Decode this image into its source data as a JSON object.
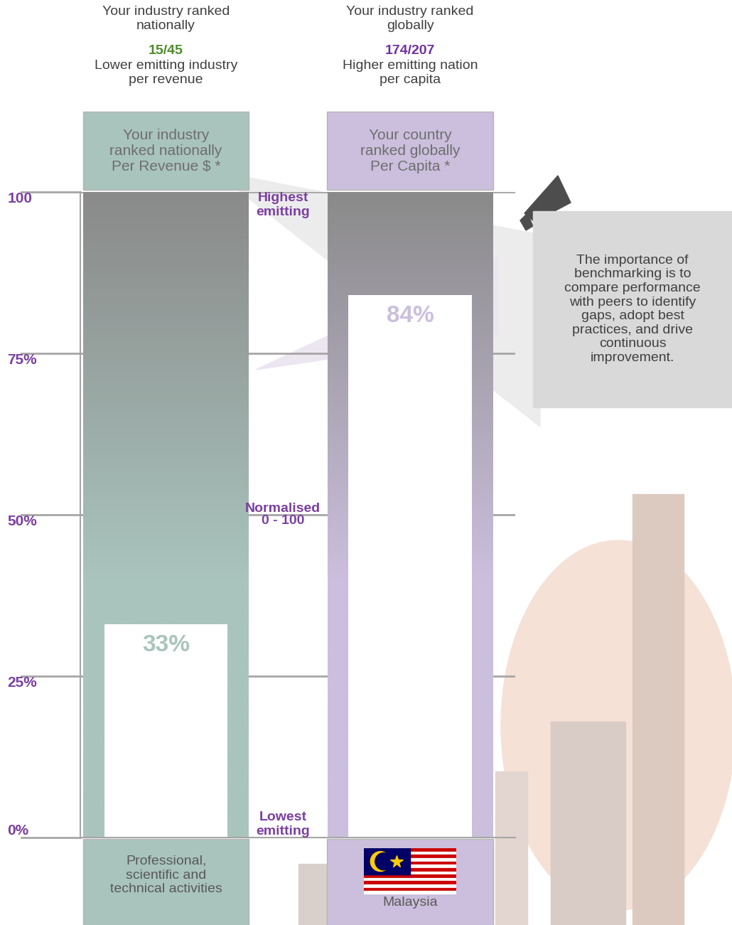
{
  "chart_data": {
    "type": "bar",
    "categories": [
      "Professional, scientific and technical activities",
      "Malaysia"
    ],
    "values": [
      33,
      84
    ],
    "value_labels": [
      "33%",
      "84%"
    ],
    "colors": [
      "#a9c4bd",
      "#cbbfdd"
    ],
    "ylim": [
      0,
      100
    ],
    "yticks": [
      {
        "value": 0,
        "label": "0%"
      },
      {
        "value": 25,
        "label": "25%"
      },
      {
        "value": 50,
        "label": "50%"
      },
      {
        "value": 75,
        "label": "75%"
      },
      100
    ],
    "grid": true,
    "data_labels": true,
    "column_headers": [
      "Your industry ranked nationally Per Revenue $ *",
      "Your country ranked globally Per Capita *"
    ],
    "rankings": [
      {
        "heading": "Your industry ranked nationally",
        "rank": "15/45",
        "note": "Lower emitting industry per revenue"
      },
      {
        "heading": "Your industry ranked globally",
        "rank": "174/207",
        "note": "Higher emitting nation per capita"
      }
    ],
    "annotations": {
      "top": "Highest emitting",
      "middle": [
        "Normalised",
        "0 - 100"
      ],
      "bottom": "Lowest emitting"
    },
    "callout": "The importance of benchmarking is to compare performance with peers to identify gaps, adopt best practices, and drive continuous improvement."
  }
}
